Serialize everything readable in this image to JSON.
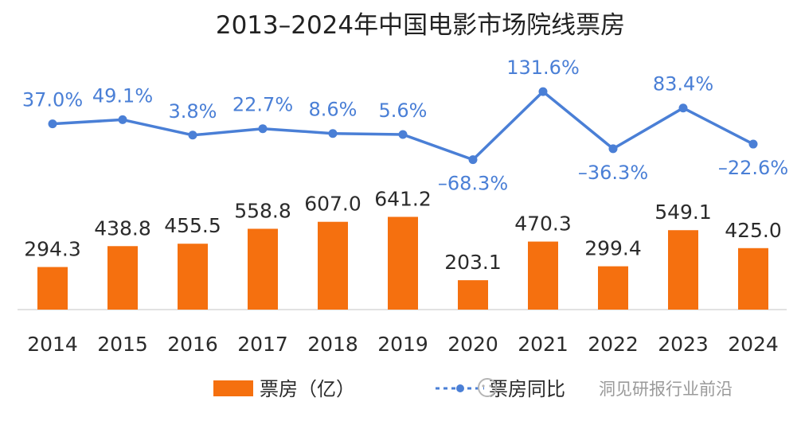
{
  "chart_data": {
    "type": "bar",
    "title": "2013–2024年中国电影市场院线票房",
    "categories": [
      "2014",
      "2015",
      "2016",
      "2017",
      "2018",
      "2019",
      "2020",
      "2021",
      "2022",
      "2023",
      "2024"
    ],
    "series": [
      {
        "name": "票房（亿）",
        "type": "bar",
        "values": [
          294.3,
          438.8,
          455.5,
          558.8,
          607.0,
          641.2,
          203.1,
          470.3,
          299.4,
          549.1,
          425.0
        ],
        "labels": [
          "294.3",
          "438.8",
          "455.5",
          "558.8",
          "607.0",
          "641.2",
          "203.1",
          "470.3",
          "299.4",
          "549.1",
          "425.0"
        ],
        "color": "#f5700f"
      },
      {
        "name": "票房同比",
        "type": "line",
        "values": [
          37.0,
          49.1,
          3.8,
          22.7,
          8.6,
          5.6,
          -68.3,
          131.6,
          -36.3,
          83.4,
          -22.6
        ],
        "labels": [
          "37.0%",
          "49.1%",
          "3.8%",
          "22.7%",
          "8.6%",
          "5.6%",
          "–68.3%",
          "131.6%",
          "–36.3%",
          "83.4%",
          "–22.6%"
        ],
        "color": "#4a7fd6"
      }
    ],
    "ylim_bar": [
      0,
      900
    ],
    "ylim_line": [
      -80,
      140
    ],
    "grid": false,
    "legend": "bottom",
    "xlabel": "",
    "ylabel": ""
  },
  "watermark": "洞见研报行业前沿"
}
